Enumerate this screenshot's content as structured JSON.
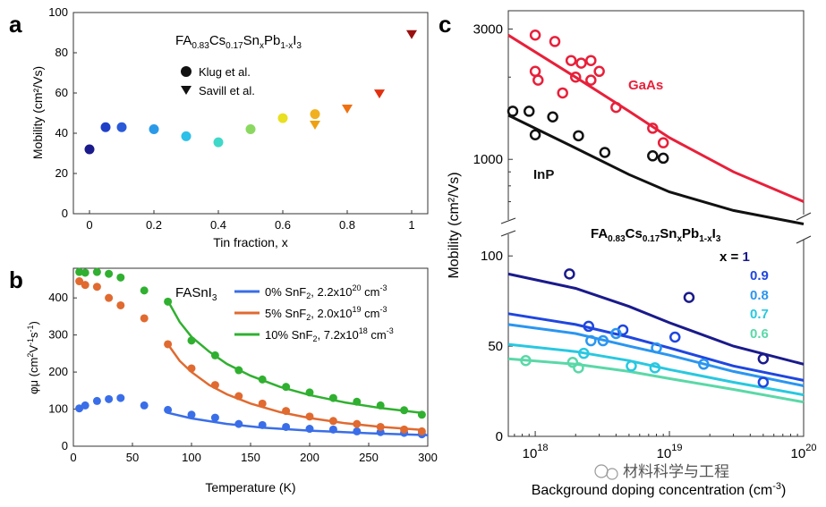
{
  "panel_labels": {
    "a": "a",
    "b": "b",
    "c": "c"
  },
  "watermark": "材料科学与工程",
  "chart_data": [
    {
      "id": "a",
      "type": "scatter",
      "title_parts": {
        "base1": "FA",
        "sub1": "0.83",
        "base2": "Cs",
        "sub2": "0.17",
        "base3": "Sn",
        "sub3": "x",
        "base4": "Pb",
        "sub4": "1-x",
        "base5": "I",
        "sub5": "3"
      },
      "xlabel": "Tin fraction, x",
      "ylabel": "Mobility (cm²/Vs)",
      "xlim": [
        -0.05,
        1.05
      ],
      "ylim": [
        0,
        100
      ],
      "xticks": [
        0,
        0.2,
        0.4,
        0.6,
        0.8,
        1
      ],
      "xtick_labels": [
        "0",
        "0.2",
        "0.4",
        "0.6",
        "0.8",
        "1"
      ],
      "yticks": [
        0,
        20,
        40,
        60,
        80,
        100
      ],
      "ytick_labels": [
        "0",
        "20",
        "40",
        "60",
        "80",
        "100"
      ],
      "legend": [
        {
          "label": "Klug et al.",
          "marker": "circle"
        },
        {
          "label": "Savill et al.",
          "marker": "triangle"
        }
      ],
      "series": [
        {
          "name": "Klug et al.",
          "marker": "circle",
          "points": [
            {
              "x": 0,
              "y": 32,
              "color": "#1a1a8c"
            },
            {
              "x": 0.05,
              "y": 43,
              "color": "#1f3fc8"
            },
            {
              "x": 0.1,
              "y": 43,
              "color": "#2a5ad8"
            },
            {
              "x": 0.2,
              "y": 42,
              "color": "#2a9ae8"
            },
            {
              "x": 0.3,
              "y": 38.5,
              "color": "#2ac0e8"
            },
            {
              "x": 0.4,
              "y": 35.5,
              "color": "#40d8c8"
            },
            {
              "x": 0.5,
              "y": 42,
              "color": "#8ad860"
            },
            {
              "x": 0.6,
              "y": 47.5,
              "color": "#e8e020"
            },
            {
              "x": 0.7,
              "y": 49.5,
              "color": "#f0b020"
            }
          ]
        },
        {
          "name": "Savill et al.",
          "marker": "triangle",
          "points": [
            {
              "x": 0.7,
              "y": 44,
              "color": "#f0a010"
            },
            {
              "x": 0.8,
              "y": 52,
              "color": "#f07010"
            },
            {
              "x": 0.9,
              "y": 59.5,
              "color": "#e03010"
            },
            {
              "x": 1.0,
              "y": 89,
              "color": "#9a1010"
            }
          ]
        }
      ]
    },
    {
      "id": "b",
      "type": "scatter",
      "title": "FASnI",
      "title_sub": "3",
      "xlabel": "Temperature (K)",
      "ylabel_parts": {
        "a": "φμ  (cm",
        "b": "2",
        "c": "V",
        "d": "-1",
        "e": "s",
        "f": "-1",
        "g": ")"
      },
      "xlim": [
        0,
        300
      ],
      "ylim": [
        0,
        480
      ],
      "xticks": [
        0,
        50,
        100,
        150,
        200,
        250,
        300
      ],
      "xtick_labels": [
        "0",
        "50",
        "100",
        "150",
        "200",
        "250",
        "300"
      ],
      "yticks": [
        0,
        100,
        200,
        300,
        400
      ],
      "ytick_labels": [
        "0",
        "100",
        "200",
        "300",
        "400"
      ],
      "series": [
        {
          "name": "0% SnF₂, 2.2x10²⁰ cm⁻³",
          "legend": {
            "a": "0% SnF",
            "b": "2",
            "c": ", 2.2x10",
            "d": "20",
            "e": " cm",
            "f": "-3"
          },
          "color": "#3a6ee8",
          "x": [
            5,
            10,
            20,
            30,
            40,
            60,
            80,
            100,
            120,
            140,
            160,
            180,
            200,
            220,
            240,
            260,
            280,
            295
          ],
          "y": [
            102,
            110,
            122,
            127,
            130,
            110,
            98,
            85,
            77,
            60,
            57,
            52,
            47,
            45,
            40,
            38,
            36,
            32
          ],
          "fit_x": [
            80,
            100,
            130,
            160,
            200,
            250,
            300
          ],
          "fit_y": [
            90,
            75,
            60,
            50,
            42,
            35,
            30
          ]
        },
        {
          "name": "5% SnF₂, 2.0x10¹⁹ cm⁻³",
          "legend": {
            "a": "5% SnF",
            "b": "2",
            "c": ", 2.0x10",
            "d": "19",
            "e": " cm",
            "f": "-3"
          },
          "color": "#e06a30",
          "x": [
            5,
            10,
            20,
            30,
            40,
            60,
            80,
            100,
            120,
            140,
            160,
            180,
            200,
            220,
            240,
            260,
            280,
            295
          ],
          "y": [
            445,
            435,
            430,
            400,
            380,
            345,
            275,
            210,
            165,
            135,
            115,
            95,
            80,
            68,
            60,
            52,
            45,
            40
          ],
          "fit_x": [
            80,
            90,
            100,
            115,
            130,
            150,
            175,
            200,
            230,
            260,
            295
          ],
          "fit_y": [
            275,
            230,
            200,
            165,
            140,
            115,
            92,
            76,
            62,
            52,
            44
          ]
        },
        {
          "name": "10% SnF₂, 7.2x10¹⁸ cm⁻³",
          "legend": {
            "a": "10% SnF",
            "b": "2",
            "c": ", 7.2x10",
            "d": "18",
            "e": " cm",
            "f": "-3"
          },
          "color": "#30b030",
          "x": [
            5,
            10,
            20,
            30,
            40,
            60,
            80,
            100,
            120,
            140,
            160,
            180,
            200,
            220,
            240,
            260,
            280,
            295
          ],
          "y": [
            470,
            468,
            470,
            465,
            455,
            420,
            390,
            285,
            245,
            205,
            180,
            160,
            145,
            130,
            120,
            110,
            97,
            85
          ],
          "fit_x": [
            80,
            90,
            100,
            115,
            130,
            150,
            175,
            200,
            230,
            260,
            295
          ],
          "fit_y": [
            392,
            335,
            295,
            255,
            222,
            190,
            160,
            138,
            118,
            103,
            90
          ]
        }
      ]
    },
    {
      "id": "c",
      "type": "scatter",
      "xlabel": "Background doping concentration (cm",
      "xlabel_sup": "-3",
      "xlabel_close": ")",
      "ylabel": "Mobility (cm²/Vs)",
      "xscale": "log",
      "xlim": [
        6.3e+17,
        1e+20
      ],
      "xticks": [
        1e+18,
        1e+19,
        1e+20
      ],
      "xtick_base": "10",
      "xtick_exps": [
        "18",
        "19",
        "20"
      ],
      "top_axis": {
        "scale": "log",
        "ylim": [
          600,
          3500
        ],
        "yticks": [
          1000,
          3000
        ],
        "ytick_labels": [
          "1000",
          "3000"
        ]
      },
      "bottom_axis": {
        "ylim": [
          0,
          112
        ],
        "yticks": [
          0,
          50,
          100
        ],
        "ytick_labels": [
          "0",
          "50",
          "100"
        ]
      },
      "subtitle_parts": {
        "base1": "FA",
        "sub1": "0.83",
        "base2": "Cs",
        "sub2": "0.17",
        "base3": "Sn",
        "sub3": "x",
        "base4": "Pb",
        "sub4": "1-x",
        "base5": "I",
        "sub5": "3"
      },
      "x_legend_title": "x = ",
      "series_top": [
        {
          "name": "GaAs",
          "color": "#e8203a",
          "points": [
            [
              1e+18,
              2850
            ],
            [
              1.4e+18,
              2700
            ],
            [
              1.85e+18,
              2300
            ],
            [
              2.2e+18,
              2250
            ],
            [
              2.6e+18,
              2300
            ],
            [
              1e+18,
              2100
            ],
            [
              1.05e+18,
              1950
            ],
            [
              2e+18,
              2000
            ],
            [
              2.6e+18,
              1950
            ],
            [
              3e+18,
              2100
            ],
            [
              1.6e+18,
              1750
            ],
            [
              4e+18,
              1550
            ],
            [
              7.5e+18,
              1300
            ],
            [
              9e+18,
              1150
            ]
          ],
          "fit_x": [
            6.3e+17,
            2e+18,
            5e+18,
            1e+19,
            3e+19,
            1e+20
          ],
          "fit_y": [
            2850,
            2000,
            1500,
            1200,
            900,
            700
          ]
        },
        {
          "name": "InP",
          "color": "#111111",
          "points": [
            [
              6.8e+17,
              1500
            ],
            [
              9e+17,
              1500
            ],
            [
              1.35e+18,
              1430
            ],
            [
              1e+18,
              1230
            ],
            [
              2.1e+18,
              1220
            ],
            [
              3.3e+18,
              1060
            ],
            [
              7.5e+18,
              1030
            ],
            [
              9e+18,
              1010
            ]
          ],
          "fit_x": [
            6.3e+17,
            2e+18,
            5e+18,
            1e+19,
            3e+19,
            1e+20
          ],
          "fit_y": [
            1450,
            1100,
            880,
            760,
            650,
            580
          ]
        }
      ],
      "series_bottom": [
        {
          "name": "1",
          "color": "#1a1a8c",
          "points": [
            [
              1.8e+18,
              90
            ],
            [
              1.4e+19,
              77
            ],
            [
              5e+19,
              43
            ]
          ],
          "fit_x": [
            6.3e+17,
            2e+18,
            5e+18,
            1e+19,
            3e+19,
            1e+20
          ],
          "fit_y": [
            90,
            82,
            72,
            63,
            50,
            40
          ]
        },
        {
          "name": "0.9",
          "color": "#1f46e0",
          "points": [
            [
              2.5e+18,
              61
            ],
            [
              4.5e+18,
              59
            ],
            [
              1.1e+19,
              55
            ],
            [
              5e+19,
              30
            ]
          ],
          "fit_x": [
            6.3e+17,
            2e+18,
            5e+18,
            1e+19,
            3e+19,
            1e+20
          ],
          "fit_y": [
            68,
            62,
            55,
            49,
            39,
            31
          ]
        },
        {
          "name": "0.8",
          "color": "#2a96f0",
          "points": [
            [
              2.6e+18,
              53
            ],
            [
              3.2e+18,
              53
            ],
            [
              4e+18,
              57
            ],
            [
              8e+18,
              49
            ],
            [
              1.8e+19,
              40
            ]
          ],
          "fit_x": [
            6.3e+17,
            2e+18,
            5e+18,
            1e+19,
            3e+19,
            1e+20
          ],
          "fit_y": [
            62,
            57,
            50,
            45,
            36,
            28
          ]
        },
        {
          "name": "0.7",
          "color": "#28c8e0",
          "points": [
            [
              2.3e+18,
              46
            ],
            [
              5.2e+18,
              39
            ],
            [
              7.8e+18,
              38
            ]
          ],
          "fit_x": [
            6.3e+17,
            2e+18,
            5e+18,
            1e+19,
            3e+19,
            1e+20
          ],
          "fit_y": [
            51,
            47,
            42,
            37,
            30,
            23
          ]
        },
        {
          "name": "0.6",
          "color": "#5ad8a8",
          "points": [
            [
              8.5e+17,
              42
            ],
            [
              1.9e+18,
              41
            ],
            [
              2.1e+18,
              38
            ]
          ],
          "fit_x": [
            6.3e+17,
            2e+18,
            5e+18,
            1e+19,
            3e+19,
            1e+20
          ],
          "fit_y": [
            43,
            40,
            36,
            32,
            26,
            19
          ]
        }
      ]
    }
  ]
}
